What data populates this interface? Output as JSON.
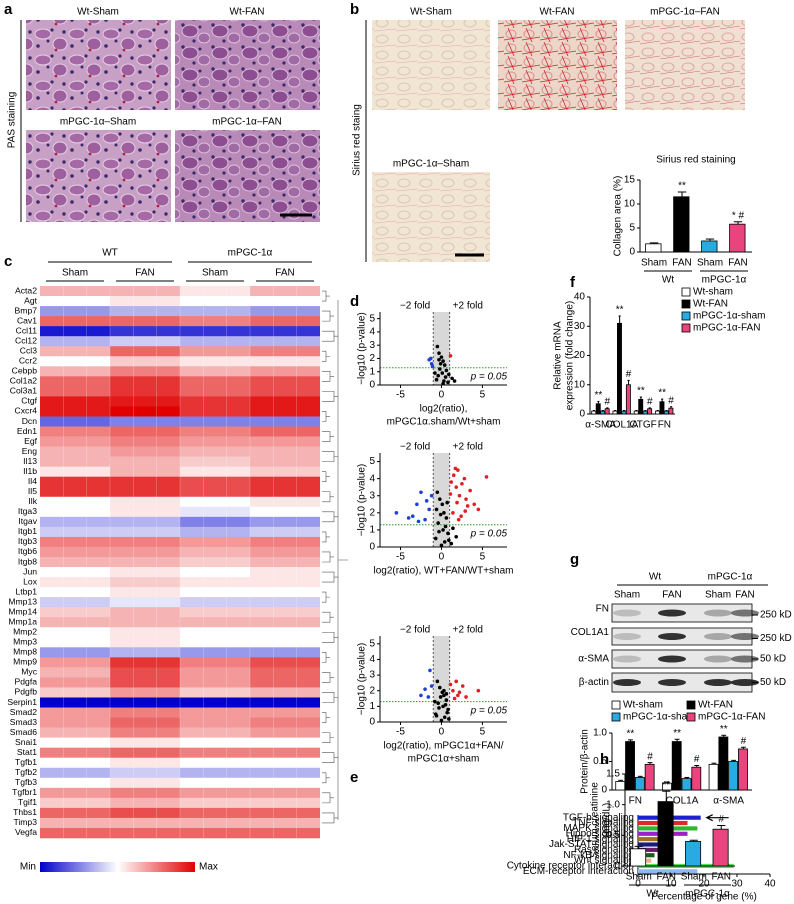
{
  "panel_labels": [
    "a",
    "b",
    "c",
    "d",
    "e",
    "f",
    "g",
    "h"
  ],
  "pas": {
    "side_label": "PAS staining",
    "images": [
      "Wt-Sham",
      "Wt-FAN",
      "mPGC-1α–Sham",
      "mPGC-1α–FAN"
    ]
  },
  "sirius": {
    "side_label": "Sirius red staing",
    "images": [
      "Wt-Sham",
      "Wt-FAN",
      "mPGC-1α–FAN",
      "mPGC-1α–Sham"
    ]
  },
  "heatmap": {
    "groups": [
      "WT",
      "mPGC-1α"
    ],
    "conditions": [
      "Sham",
      "FAN",
      "Sham",
      "FAN"
    ],
    "legend": [
      "Min",
      "Max"
    ],
    "genes": [
      "Acta2",
      "Agt",
      "Bmp7",
      "Cav1",
      "Ccl11",
      "Ccl12",
      "Ccl3",
      "Ccr2",
      "Cebpb",
      "Col1a2",
      "Col3a1",
      "Ctgf",
      "Cxcr4",
      "Dcn",
      "Edn1",
      "Egf",
      "Eng",
      "Il13",
      "Il1b",
      "Il4",
      "Il5",
      "Ilk",
      "Itga3",
      "Itgav",
      "Itgb1",
      "Itgb3",
      "Itgb6",
      "Itgb8",
      "Jun",
      "Lox",
      "Ltbp1",
      "Mmp13",
      "Mmp14",
      "Mmp1a",
      "Mmp2",
      "Mmp3",
      "Mmp8",
      "Mmp9",
      "Myc",
      "Pdgfa",
      "Pdgfb",
      "Serpin1",
      "Smad2",
      "Smad3",
      "Smad6",
      "Snai1",
      "Stat1",
      "Tgfb1",
      "Tgfb2",
      "Tgfb3",
      "Tgfbr1",
      "Tgif1",
      "Thbs1",
      "Timp3",
      "Vegfa"
    ],
    "values": [
      [
        0.3,
        0.3,
        0.1,
        0.3
      ],
      [
        0,
        0.1,
        0,
        0
      ],
      [
        -0.4,
        -0.3,
        -0.3,
        -0.4
      ],
      [
        0.6,
        0.6,
        0.5,
        0.6
      ],
      [
        -0.9,
        -0.8,
        -0.8,
        -0.8
      ],
      [
        -0.3,
        -0.2,
        -0.3,
        -0.3
      ],
      [
        0.3,
        0.6,
        0.4,
        0.5
      ],
      [
        0,
        0.2,
        0.1,
        0.1
      ],
      [
        0.3,
        0.5,
        0.3,
        0.4
      ],
      [
        0.6,
        0.8,
        0.6,
        0.7
      ],
      [
        0.6,
        0.8,
        0.6,
        0.7
      ],
      [
        0.9,
        0.9,
        0.8,
        0.9
      ],
      [
        0.9,
        1,
        0.8,
        0.9
      ],
      [
        -0.6,
        -0.5,
        -0.5,
        -0.5
      ],
      [
        0.5,
        0.6,
        0.5,
        0.6
      ],
      [
        0.4,
        0.5,
        0.4,
        0.4
      ],
      [
        0.3,
        0.4,
        0.3,
        0.3
      ],
      [
        0.3,
        0.3,
        0.2,
        0.3
      ],
      [
        0.1,
        0.3,
        0.1,
        0.2
      ],
      [
        0.8,
        0.8,
        0.7,
        0.8
      ],
      [
        0.8,
        0.8,
        0.7,
        0.8
      ],
      [
        0,
        0.1,
        0,
        0.1
      ],
      [
        0,
        0.1,
        -0.1,
        0
      ],
      [
        -0.3,
        -0.3,
        -0.5,
        -0.4
      ],
      [
        -0.2,
        -0.2,
        -0.3,
        -0.2
      ],
      [
        0.5,
        0.5,
        0.4,
        0.5
      ],
      [
        0.4,
        0.4,
        0.3,
        0.4
      ],
      [
        0.3,
        0.3,
        0.2,
        0.3
      ],
      [
        0,
        0.1,
        0,
        0.1
      ],
      [
        0.1,
        0.2,
        0.1,
        0.1
      ],
      [
        0,
        0.1,
        0,
        0
      ],
      [
        -0.2,
        -0.1,
        -0.2,
        -0.2
      ],
      [
        0.2,
        0.3,
        0.2,
        0.2
      ],
      [
        0.3,
        0.3,
        0.3,
        0.3
      ],
      [
        0,
        0.1,
        0,
        0
      ],
      [
        0,
        0.1,
        0,
        0
      ],
      [
        -0.4,
        -0.3,
        -0.4,
        -0.4
      ],
      [
        0.4,
        0.8,
        0.5,
        0.7
      ],
      [
        0.3,
        0.7,
        0.4,
        0.6
      ],
      [
        0.4,
        0.7,
        0.4,
        0.6
      ],
      [
        0.2,
        0.4,
        0.2,
        0.3
      ],
      [
        -1,
        -1,
        -1,
        -1
      ],
      [
        0.4,
        0.5,
        0.4,
        0.4
      ],
      [
        0.4,
        0.6,
        0.4,
        0.5
      ],
      [
        0.3,
        0.5,
        0.3,
        0.4
      ],
      [
        0,
        0.1,
        0,
        0
      ],
      [
        0.5,
        0.6,
        0.5,
        0.5
      ],
      [
        0,
        0.1,
        0,
        0
      ],
      [
        -0.3,
        -0.2,
        -0.3,
        -0.3
      ],
      [
        0,
        0.1,
        0,
        0
      ],
      [
        0.4,
        0.5,
        0.4,
        0.4
      ],
      [
        0.2,
        0.3,
        0.2,
        0.2
      ],
      [
        0.6,
        0.7,
        0.6,
        0.6
      ],
      [
        0.3,
        0.3,
        0.3,
        0.3
      ],
      [
        0.6,
        0.6,
        0.6,
        0.6
      ]
    ]
  },
  "blot": {
    "groups": [
      "Wt",
      "mPGC-1α"
    ],
    "conditions": [
      "Sham",
      "FAN",
      "Sham",
      "FAN"
    ],
    "proteins": [
      "FN",
      "COL1A1",
      "α-SMA",
      "β-actin"
    ],
    "sizes": [
      "250 kD",
      "250 kD",
      "50 kD",
      "50 kD"
    ]
  },
  "chart_data": [
    {
      "type": "bar",
      "title": "Sirius red staining",
      "y_label": [
        "Collagen area (%)"
      ],
      "categories": [
        "Sham",
        "FAN",
        "Sham",
        "FAN"
      ],
      "groups": [
        "Wt",
        "mPGC-1α"
      ],
      "values": [
        1.7,
        11.5,
        2.3,
        5.8
      ],
      "errors": [
        0.2,
        1.0,
        0.4,
        0.5
      ],
      "annotations": [
        null,
        "**",
        null,
        "* #"
      ],
      "colors": [
        "#ffffff",
        "#000000",
        "#29abe2",
        "#e8457f"
      ],
      "ylim": [
        0,
        15
      ],
      "yticks": [
        0,
        5,
        10,
        15
      ]
    },
    {
      "type": "scatter",
      "fold_labels": [
        "−2 fold",
        "+2 fold"
      ],
      "p_label": "p = 0.05",
      "y_label": [
        "−log10 (p-value)"
      ],
      "x_label": [
        "log2(ratio),",
        "mPGC1α.sham/Wt+sham"
      ],
      "xlim": [
        -7.5,
        8
      ],
      "xticks": [
        -5,
        0,
        5
      ],
      "ylim": [
        0,
        5.5
      ],
      "yticks": [
        0,
        1,
        2,
        3,
        4,
        5
      ],
      "fold_x": [
        -1,
        1
      ],
      "threshold_y": 1.3,
      "series": [
        {
          "color": "#000000",
          "x": [
            -0.5,
            -0.3,
            0,
            0.2,
            0.4,
            -0.2,
            0.1,
            0.5,
            -0.6,
            0.3,
            0.8,
            -0.1,
            0.6,
            1.3,
            -0.4,
            0.2,
            -0.8,
            0.9,
            1.6,
            -0.3
          ],
          "y": [
            2.9,
            2.4,
            2.1,
            1.8,
            1.5,
            1.2,
            0.9,
            0.6,
            0.4,
            0.3,
            0.2,
            1.6,
            1.1,
            0.5,
            0.7,
            0.1,
            0.9,
            0.8,
            0.3,
            1.9
          ]
        },
        {
          "color": "#1f3fd6",
          "x": [
            -1.2,
            -1.5,
            -1.1,
            -1.3
          ],
          "y": [
            1.6,
            1.9,
            1.4,
            2.0
          ]
        },
        {
          "color": "#e02020",
          "x": [
            1.1
          ],
          "y": [
            2.2
          ]
        }
      ]
    },
    {
      "type": "scatter",
      "fold_labels": [
        "−2 fold",
        "+2 fold"
      ],
      "p_label": "p = 0.05",
      "y_label": [
        "−log10 (p-value)"
      ],
      "x_label": [
        "log2(ratio), WT+FAN/WT+sham"
      ],
      "xlim": [
        -7.5,
        8
      ],
      "xticks": [
        -5,
        0,
        5
      ],
      "ylim": [
        0,
        5.5
      ],
      "yticks": [
        0,
        1,
        2,
        3,
        4,
        5
      ],
      "fold_x": [
        -1,
        1
      ],
      "threshold_y": 1.3,
      "series": [
        {
          "color": "#000000",
          "x": [
            -0.5,
            -0.2,
            0.1,
            0.3,
            0.6,
            -0.4,
            0.2,
            0.8,
            -0.7,
            0.4,
            1.2,
            -0.1,
            0.5,
            1.8,
            -0.3,
            0.0,
            0.9,
            1.4,
            -0.6,
            0.7
          ],
          "y": [
            3.2,
            2.8,
            2.5,
            2.0,
            1.7,
            1.4,
            1.0,
            0.8,
            0.5,
            0.3,
            0.2,
            1.9,
            1.2,
            0.6,
            0.9,
            0.1,
            0.4,
            1.1,
            2.2,
            2.6
          ]
        },
        {
          "color": "#e02020",
          "x": [
            1.2,
            1.5,
            1.8,
            2.0,
            2.2,
            2.5,
            2.8,
            3.0,
            3.5,
            4.0,
            4.5,
            1.4,
            1.9,
            2.4,
            2.9,
            1.1,
            1.7,
            2.1,
            5.5,
            3.2
          ],
          "y": [
            3.8,
            4.2,
            3.5,
            4.5,
            3.0,
            3.7,
            4.0,
            2.8,
            3.3,
            2.5,
            2.2,
            2.0,
            2.6,
            1.8,
            2.1,
            3.1,
            4.6,
            1.6,
            4.1,
            2.4
          ]
        },
        {
          "color": "#1f3fd6",
          "x": [
            -5.5,
            -3.5,
            -3.0,
            -2.5,
            -2.0,
            -1.5,
            -1.2,
            -2.8,
            -4.0,
            -1.8
          ],
          "y": [
            2.0,
            1.8,
            2.5,
            3.2,
            1.6,
            2.2,
            3.0,
            1.5,
            1.7,
            2.7
          ]
        }
      ]
    },
    {
      "type": "scatter",
      "fold_labels": [
        "−2 fold",
        "+2 fold"
      ],
      "p_label": "p = 0.05",
      "y_label": [
        "−log10 (p-value)"
      ],
      "x_label": [
        "log2(ratio), mPGC1α+FAN/",
        "mPGC1α+sham"
      ],
      "xlim": [
        -7.5,
        8
      ],
      "xticks": [
        -5,
        0,
        5
      ],
      "ylim": [
        0,
        5.5
      ],
      "yticks": [
        0,
        1,
        2,
        3,
        4,
        5
      ],
      "fold_x": [
        -1,
        1
      ],
      "threshold_y": 1.3,
      "series": [
        {
          "color": "#000000",
          "x": [
            -0.5,
            -0.2,
            0.1,
            0.3,
            0.6,
            -0.4,
            0.2,
            0.8,
            -0.7,
            0.4,
            0.9,
            -0.1,
            0.5,
            -0.3,
            0.0,
            0.7,
            -0.6,
            0.3,
            -0.8,
            0.6
          ],
          "y": [
            2.6,
            2.2,
            1.9,
            1.7,
            1.4,
            1.2,
            1.0,
            0.8,
            0.5,
            0.3,
            0.2,
            1.6,
            1.1,
            0.9,
            0.1,
            0.6,
            0.4,
            2.0,
            1.3,
            1.8
          ]
        },
        {
          "color": "#e02020",
          "x": [
            1.1,
            1.4,
            1.8,
            2.2,
            2.6,
            3.0,
            4.5,
            1.6,
            2.0
          ],
          "y": [
            2.4,
            2.0,
            2.6,
            1.9,
            2.3,
            1.6,
            2.0,
            1.5,
            1.7
          ]
        },
        {
          "color": "#1f3fd6",
          "x": [
            -1.2,
            -1.6,
            -2.0,
            -2.5,
            -1.4
          ],
          "y": [
            2.3,
            1.6,
            2.1,
            1.7,
            3.3
          ]
        }
      ]
    },
    {
      "type": "barh",
      "x_label": "Percentage of gene (%)",
      "categories": [
        "TGF-b signaling",
        "TNF signaling",
        "MAPK signaling",
        "Hippo signaling",
        "HIF-1 signaling",
        "Jak-STAT signaling",
        "Ras signaling",
        "NF-kB signaling",
        "Wnt signaling",
        "Cytokine receptor interaction",
        "ECM-receptor interaction"
      ],
      "values": [
        19,
        15,
        18,
        15,
        8,
        8,
        10,
        5,
        4,
        29,
        18
      ],
      "colors": [
        "#1f1fd0",
        "#e02828",
        "#2db82d",
        "#a020c8",
        "#a0702a",
        "#1a1a7a",
        "#6a1a6a",
        "#1a5a1a",
        "#f0a890",
        "#4ee04e",
        "#90b8f0"
      ],
      "xlim": [
        0,
        40
      ],
      "xticks": [
        0,
        10,
        20,
        30,
        40
      ]
    },
    {
      "type": "bar",
      "y_label": [
        "Relative mRNA",
        "expression (fold change)"
      ],
      "categories": [
        "α-SMA",
        "COL1A",
        "CTGF",
        "FN"
      ],
      "ylim": [
        0,
        40
      ],
      "yticks": [
        0,
        10,
        20,
        30,
        40
      ],
      "series": [
        {
          "name": "Wt-sham",
          "color": "#ffffff",
          "values": [
            1,
            1,
            1,
            1
          ],
          "errors": [
            0.2,
            0.2,
            0.2,
            0.2
          ]
        },
        {
          "name": "Wt-FAN",
          "color": "#000000",
          "values": [
            3.5,
            31,
            5,
            4.2
          ],
          "errors": [
            0.8,
            2.5,
            0.8,
            0.9
          ],
          "annotations": [
            "**",
            "**",
            "**",
            "**"
          ]
        },
        {
          "name": "mPGC-1α-sham",
          "color": "#29abe2",
          "values": [
            1,
            1,
            1,
            1
          ],
          "errors": [
            0.2,
            0.2,
            0.2,
            0.2
          ]
        },
        {
          "name": "mPGC-1α-FAN",
          "color": "#e8457f",
          "values": [
            1.8,
            10,
            1.8,
            2
          ],
          "errors": [
            0.3,
            1.5,
            0.3,
            0.5
          ],
          "annotations": [
            "#",
            "#",
            "#",
            "#"
          ]
        }
      ]
    },
    {
      "type": "bar",
      "y_label": [
        "Protein/β-actin"
      ],
      "categories": [
        "FN",
        "COL1A",
        "α-SMA"
      ],
      "ylim": [
        0,
        1
      ],
      "yticks": [
        0,
        0.5,
        {
          "value": 1,
          "label": "1.0"
        }
      ],
      "series": [
        {
          "name": "Wt-sham",
          "color": "#ffffff",
          "values": [
            0.15,
            0.12,
            0.45
          ],
          "errors": [
            0.02,
            0.02,
            0.02
          ]
        },
        {
          "name": "Wt-FAN",
          "color": "#000000",
          "values": [
            0.85,
            0.85,
            0.93
          ],
          "errors": [
            0.03,
            0.04,
            0.03
          ],
          "annotations": [
            "**",
            "**",
            "**"
          ]
        },
        {
          "name": "mPGC-1α-sham",
          "color": "#29abe2",
          "values": [
            0.22,
            0.2,
            0.5
          ],
          "errors": [
            0.02,
            0.02,
            0.02
          ]
        },
        {
          "name": "mPGC-1α-FAN",
          "color": "#e8457f",
          "values": [
            0.45,
            0.4,
            0.72
          ],
          "errors": [
            0.03,
            0.03,
            0.03
          ],
          "annotations": [
            "#",
            "#",
            "#"
          ]
        }
      ]
    },
    {
      "type": "bar",
      "y_label": [
        "Serum creatinine",
        "(mg/dL)"
      ],
      "categories": [
        "Sham",
        "FAN",
        "Sham",
        "FAN"
      ],
      "groups": [
        "Wt",
        "mPGC-1α"
      ],
      "values": [
        0.28,
        1.05,
        0.4,
        0.6
      ],
      "errors": [
        0.04,
        0.17,
        0.02,
        0.06
      ],
      "annotations": [
        null,
        "**",
        null,
        "#"
      ],
      "colors": [
        "#ffffff",
        "#000000",
        "#29abe2",
        "#e8457f"
      ],
      "ylim": [
        0,
        1.5
      ],
      "yticks": [
        0,
        0.5,
        {
          "value": 1,
          "label": "1.0"
        },
        1.5
      ]
    }
  ]
}
